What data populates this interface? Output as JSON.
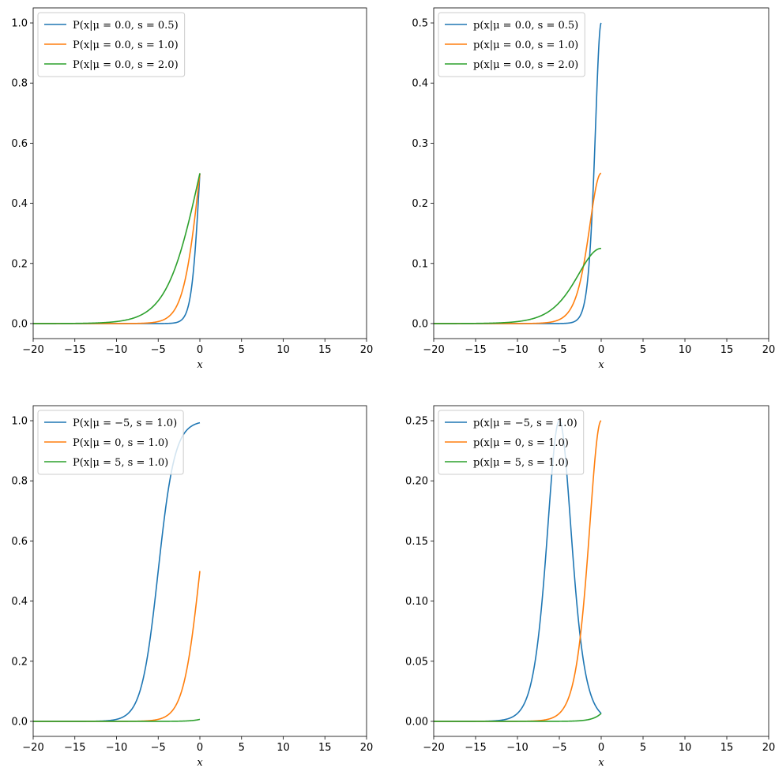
{
  "colors": {
    "c0": "#1f77b4",
    "c1": "#ff7f0e",
    "c2": "#2ca02c"
  },
  "chart_data": [
    {
      "type": "line",
      "function": "logistic_cdf",
      "xlabel": "x",
      "xlim": [
        -20,
        20
      ],
      "ylim": [
        -0.05,
        1.05
      ],
      "xticks": [
        -20,
        -15,
        -10,
        -5,
        0,
        5,
        10,
        15,
        20
      ],
      "yticks": [
        0.0,
        0.2,
        0.4,
        0.6,
        0.8,
        1.0
      ],
      "ytick_decimals": 1,
      "legend_position": "upper-left",
      "series": [
        {
          "name": "P(x|μ = 0.0, s = 0.5)",
          "mu": 0.0,
          "s": 0.5,
          "color": "#1f77b4"
        },
        {
          "name": "P(x|μ = 0.0, s = 1.0)",
          "mu": 0.0,
          "s": 1.0,
          "color": "#ff7f0e"
        },
        {
          "name": "P(x|μ = 0.0, s = 2.0)",
          "mu": 0.0,
          "s": 2.0,
          "color": "#2ca02c"
        }
      ]
    },
    {
      "type": "line",
      "function": "logistic_pdf",
      "xlabel": "x",
      "xlim": [
        -20,
        20
      ],
      "ylim": [
        -0.025,
        0.525
      ],
      "xticks": [
        -20,
        -15,
        -10,
        -5,
        0,
        5,
        10,
        15,
        20
      ],
      "yticks": [
        0.0,
        0.1,
        0.2,
        0.3,
        0.4,
        0.5
      ],
      "ytick_decimals": 1,
      "legend_position": "upper-left",
      "series": [
        {
          "name": "p(x|μ = 0.0, s = 0.5)",
          "mu": 0.0,
          "s": 0.5,
          "color": "#1f77b4"
        },
        {
          "name": "p(x|μ = 0.0, s = 1.0)",
          "mu": 0.0,
          "s": 1.0,
          "color": "#ff7f0e"
        },
        {
          "name": "p(x|μ = 0.0, s = 2.0)",
          "mu": 0.0,
          "s": 2.0,
          "color": "#2ca02c"
        }
      ]
    },
    {
      "type": "line",
      "function": "logistic_cdf",
      "xlabel": "x",
      "xlim": [
        -20,
        20
      ],
      "ylim": [
        -0.05,
        1.05
      ],
      "xticks": [
        -20,
        -15,
        -10,
        -5,
        0,
        5,
        10,
        15,
        20
      ],
      "yticks": [
        0.0,
        0.2,
        0.4,
        0.6,
        0.8,
        1.0
      ],
      "ytick_decimals": 1,
      "legend_position": "upper-left",
      "series": [
        {
          "name": "P(x|μ = −5, s = 1.0)",
          "mu": -5,
          "s": 1.0,
          "color": "#1f77b4"
        },
        {
          "name": "P(x|μ = 0, s = 1.0)",
          "mu": 0,
          "s": 1.0,
          "color": "#ff7f0e"
        },
        {
          "name": "P(x|μ = 5, s = 1.0)",
          "mu": 5,
          "s": 1.0,
          "color": "#2ca02c"
        }
      ]
    },
    {
      "type": "line",
      "function": "logistic_pdf",
      "xlabel": "x",
      "xlim": [
        -20,
        20
      ],
      "ylim": [
        -0.0125,
        0.2625
      ],
      "xticks": [
        -20,
        -15,
        -10,
        -5,
        0,
        5,
        10,
        15,
        20
      ],
      "yticks": [
        0.0,
        0.05,
        0.1,
        0.15,
        0.2,
        0.25
      ],
      "ytick_decimals": 2,
      "legend_position": "upper-left",
      "series": [
        {
          "name": "p(x|μ = −5, s = 1.0)",
          "mu": -5,
          "s": 1.0,
          "color": "#1f77b4"
        },
        {
          "name": "p(x|μ = 0, s = 1.0)",
          "mu": 0,
          "s": 1.0,
          "color": "#ff7f0e"
        },
        {
          "name": "p(x|μ = 5, s = 1.0)",
          "mu": 5,
          "s": 1.0,
          "color": "#2ca02c"
        }
      ]
    }
  ]
}
